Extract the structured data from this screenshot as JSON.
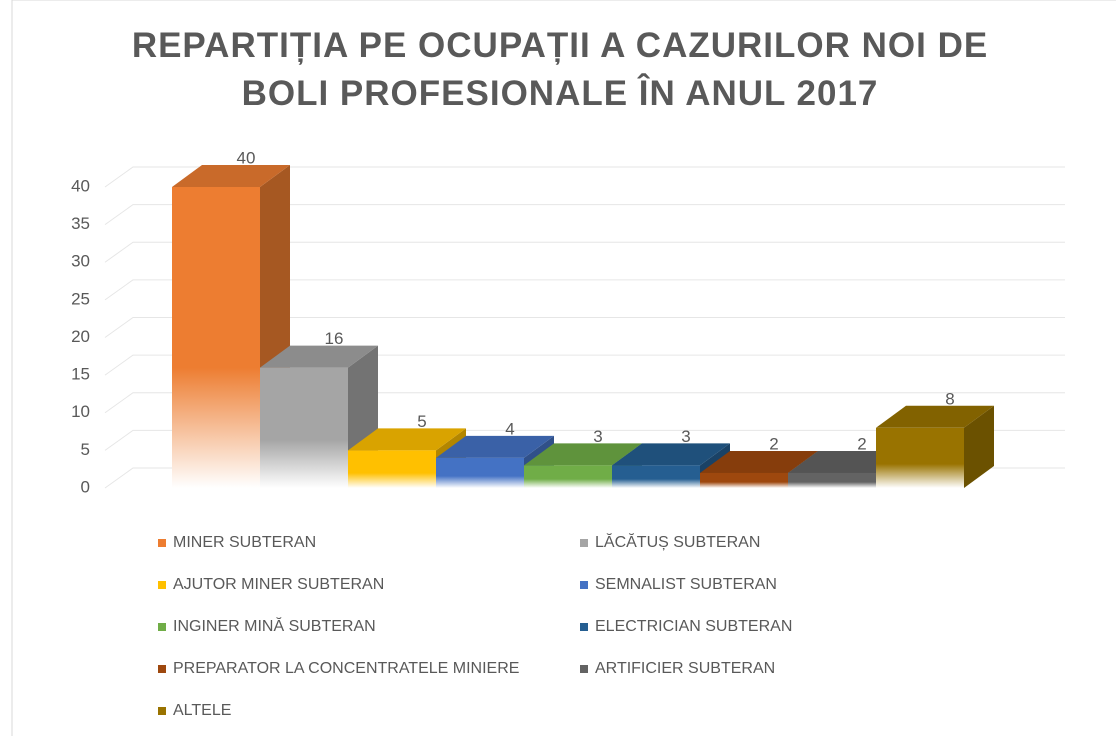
{
  "chart_data": {
    "type": "bar",
    "title": "REPARTIȚIA PE OCUPAȚII A CAZURILOR NOI DE BOLI PROFESIONALE ÎN ANUL 2017",
    "series": [
      {
        "name": "MINER SUBTERAN",
        "color": "#ed7d31",
        "values": [
          40
        ]
      },
      {
        "name": "LĂCĂTUȘ SUBTERAN",
        "color": "#a5a5a5",
        "values": [
          16
        ]
      },
      {
        "name": "AJUTOR MINER SUBTERAN",
        "color": "#ffc000",
        "values": [
          5
        ]
      },
      {
        "name": "SEMNALIST SUBTERAN",
        "color": "#4472c4",
        "values": [
          4
        ]
      },
      {
        "name": "INGINER MINĂ SUBTERAN",
        "color": "#70ad47",
        "values": [
          3
        ]
      },
      {
        "name": "ELECTRICIAN SUBTERAN",
        "color": "#255e91",
        "values": [
          3
        ]
      },
      {
        "name": "PREPARATOR LA CONCENTRATELE MINIERE",
        "color": "#9e480e",
        "values": [
          2
        ]
      },
      {
        "name": "ARTIFICIER SUBTERAN",
        "color": "#636363",
        "values": [
          2
        ]
      },
      {
        "name": "ALTELE",
        "color": "#997300",
        "values": [
          8
        ]
      }
    ],
    "ylim": [
      0,
      40
    ],
    "yticks": [
      0,
      5,
      10,
      15,
      20,
      25,
      30,
      35,
      40
    ],
    "grid": true,
    "legend": "bottom"
  }
}
